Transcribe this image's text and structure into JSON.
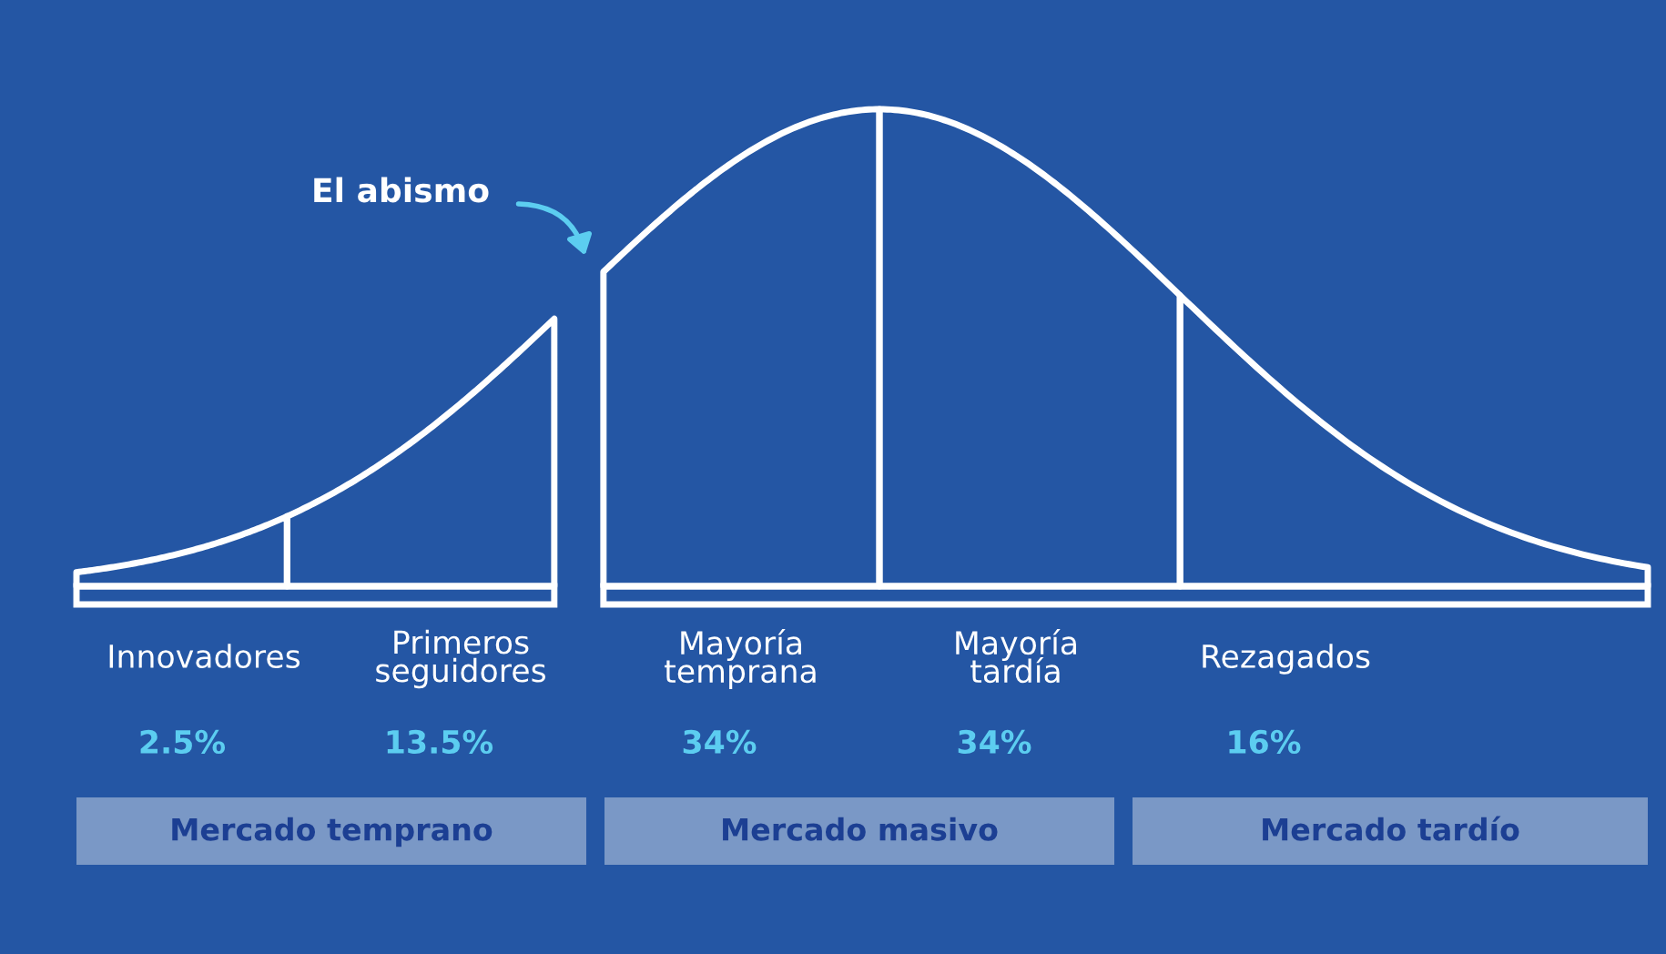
{
  "chart_data": {
    "type": "other",
    "categories": [
      "Innovadores",
      "Primeros\nseguidores",
      "Mayoría\ntemprana",
      "Mayoría\ntardía",
      "Rezagados"
    ],
    "values": [
      2.5,
      13.5,
      34,
      34,
      16
    ],
    "value_labels": [
      "2.5%",
      "13.5%",
      "34%",
      "34%",
      "16%"
    ],
    "color": "#5ccdf0",
    "annotations": [
      "El abismo",
      "Mercado temprano",
      "Mercado masivo",
      "Mercado tardío"
    ]
  }
}
